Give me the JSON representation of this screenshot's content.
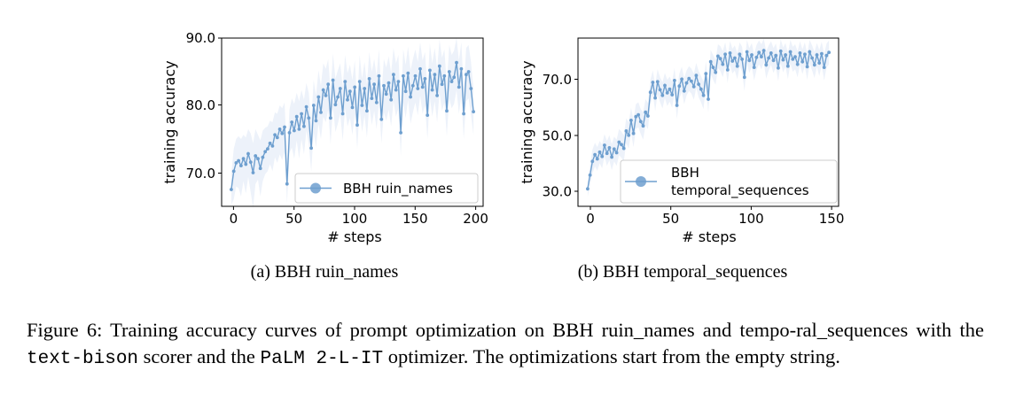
{
  "figures": [
    {
      "subcaption": "(a) BBH ruin_names",
      "xlabel": "# steps",
      "ylabel": "training accuracy",
      "xticks": [
        0,
        50,
        100,
        150,
        200
      ],
      "yticks": [
        "70.0",
        "80.0",
        "90.0"
      ],
      "legend": [
        "BBH ruin_names"
      ]
    },
    {
      "subcaption": "(b) BBH temporal_sequences",
      "xlabel": "# steps",
      "ylabel": "training accuracy",
      "xticks": [
        0,
        50,
        100,
        150
      ],
      "yticks": [
        "30.0",
        "50.0",
        "70.0"
      ],
      "legend": [
        "BBH",
        "temporal_sequences"
      ]
    }
  ],
  "caption": {
    "part1": "Figure 6:  Training accuracy curves of prompt optimization on BBH ruin_names and tempo-ral_sequences with the ",
    "scorer": "text-bison",
    "part2": " scorer and the ",
    "optimizer": "PaLM 2-L-IT",
    "part3": " optimizer. The optimizations start from the empty string."
  },
  "chart_data": [
    {
      "type": "line",
      "title": "",
      "xlabel": "# steps",
      "ylabel": "training accuracy",
      "xlim": [
        -8,
        208
      ],
      "ylim": [
        66,
        90
      ],
      "grid": false,
      "legend_position": "bottom-right",
      "colors": {
        "line": "#6e9fcf",
        "band": "#dfe7f5"
      },
      "series": [
        {
          "name": "BBH ruin_names",
          "x": [
            0,
            2,
            4,
            6,
            8,
            10,
            12,
            14,
            16,
            18,
            20,
            22,
            24,
            26,
            28,
            30,
            32,
            34,
            36,
            38,
            40,
            42,
            44,
            46,
            48,
            50,
            52,
            54,
            56,
            58,
            60,
            62,
            64,
            66,
            68,
            70,
            72,
            74,
            76,
            78,
            80,
            82,
            84,
            86,
            88,
            90,
            92,
            94,
            96,
            98,
            100,
            102,
            104,
            106,
            108,
            110,
            112,
            114,
            116,
            118,
            120,
            122,
            124,
            126,
            128,
            130,
            132,
            134,
            136,
            138,
            140,
            142,
            144,
            146,
            148,
            150,
            152,
            154,
            156,
            158,
            160,
            162,
            164,
            166,
            168,
            170,
            172,
            174,
            176,
            178,
            180,
            182,
            184,
            186,
            188,
            190,
            192,
            194,
            196,
            198,
            200
          ],
          "y": [
            68.4,
            71.0,
            72.2,
            72.5,
            71.8,
            72.8,
            72.0,
            73.5,
            72.3,
            70.8,
            73.2,
            72.8,
            71.4,
            73.0,
            73.8,
            74.2,
            75.0,
            74.6,
            76.2,
            75.8,
            77.0,
            76.4,
            77.3,
            69.2,
            76.5,
            78.0,
            76.8,
            78.8,
            77.0,
            79.2,
            77.4,
            80.2,
            78.6,
            74.3,
            80.4,
            78.2,
            81.6,
            79.4,
            82.6,
            81.8,
            83.4,
            78.6,
            84.0,
            80.5,
            81.6,
            82.8,
            79.2,
            83.8,
            81.2,
            82.4,
            80.1,
            83.0,
            77.6,
            83.8,
            80.4,
            82.8,
            79.6,
            84.2,
            81.4,
            83.4,
            80.8,
            84.6,
            78.4,
            83.2,
            82.0,
            83.6,
            81.2,
            84.8,
            82.6,
            83.8,
            76.5,
            84.6,
            82.4,
            85.0,
            81.6,
            83.2,
            84.6,
            82.8,
            85.6,
            83.0,
            84.2,
            79.0,
            85.4,
            82.6,
            84.8,
            81.8,
            86.0,
            83.4,
            84.6,
            79.6,
            85.2,
            83.8,
            84.4,
            86.5,
            83.0,
            85.6,
            79.2,
            84.8,
            85.2,
            82.8,
            79.5
          ],
          "lower": [
            66.2,
            67.0,
            68.8,
            68.6,
            67.4,
            69.6,
            67.8,
            70.2,
            68.0,
            65.8,
            69.2,
            69.8,
            67.4,
            69.6,
            70.6,
            71.0,
            72.0,
            71.0,
            73.0,
            72.2,
            73.4,
            72.6,
            73.8,
            66.4,
            73.6,
            74.4,
            72.8,
            75.4,
            72.8,
            75.6,
            73.4,
            76.8,
            74.8,
            71.0,
            76.6,
            74.4,
            77.8,
            75.6,
            78.8,
            78.0,
            79.8,
            74.8,
            80.2,
            76.6,
            77.8,
            79.2,
            75.4,
            80.0,
            77.4,
            78.6,
            76.2,
            79.2,
            74.2,
            80.0,
            76.6,
            79.0,
            75.8,
            80.4,
            77.6,
            79.6,
            77.0,
            80.8,
            75.0,
            79.4,
            78.2,
            79.8,
            77.4,
            81.0,
            78.8,
            80.0,
            73.2,
            80.8,
            78.6,
            81.2,
            77.8,
            79.4,
            80.8,
            79.0,
            81.8,
            79.2,
            80.4,
            75.6,
            81.6,
            78.8,
            81.0,
            78.0,
            82.2,
            79.6,
            80.8,
            76.0,
            81.4,
            80.0,
            80.6,
            82.6,
            79.2,
            81.8,
            75.6,
            81.0,
            81.4,
            79.0,
            76.2
          ],
          "upper": [
            70.6,
            74.2,
            75.6,
            76.0,
            75.6,
            76.2,
            75.8,
            77.0,
            76.4,
            75.0,
            77.0,
            76.2,
            75.4,
            76.8,
            77.2,
            77.4,
            78.2,
            78.0,
            79.4,
            79.2,
            80.4,
            80.0,
            80.8,
            72.6,
            79.8,
            81.4,
            80.6,
            82.2,
            81.0,
            82.6,
            81.2,
            83.6,
            82.2,
            78.0,
            84.0,
            81.8,
            85.4,
            83.2,
            86.4,
            85.6,
            87.0,
            82.4,
            87.8,
            84.2,
            85.4,
            86.4,
            83.0,
            87.6,
            85.0,
            86.2,
            84.0,
            86.8,
            81.0,
            87.6,
            84.2,
            86.6,
            83.4,
            88.0,
            85.2,
            87.0,
            84.6,
            88.4,
            82.0,
            87.0,
            85.8,
            87.4,
            85.0,
            88.6,
            86.4,
            87.6,
            80.0,
            88.4,
            86.2,
            88.8,
            85.4,
            87.0,
            88.4,
            86.6,
            89.4,
            86.8,
            88.0,
            82.8,
            89.2,
            86.4,
            88.6,
            85.6,
            89.8,
            87.2,
            88.4,
            83.4,
            89.0,
            87.6,
            88.2,
            90.0,
            86.8,
            89.4,
            82.8,
            88.6,
            89.0,
            86.6,
            82.8
          ]
        }
      ]
    },
    {
      "type": "line",
      "title": "",
      "xlabel": "# steps",
      "ylabel": "training accuracy",
      "xlim": [
        -6,
        156
      ],
      "ylim": [
        26,
        80
      ],
      "grid": false,
      "legend_position": "bottom-right",
      "colors": {
        "line": "#6e9fcf",
        "band": "#dfe7f5"
      },
      "series": [
        {
          "name": "BBH temporal_sequences",
          "x": [
            0,
            1.5,
            3,
            4.5,
            6,
            7.5,
            9,
            10.5,
            12,
            13.5,
            15,
            16.5,
            18,
            19.5,
            21,
            22.5,
            24,
            25.5,
            27,
            28.5,
            30,
            31.5,
            33,
            34.5,
            36,
            37.5,
            39,
            40.5,
            42,
            43.5,
            45,
            46.5,
            48,
            49.5,
            51,
            52.5,
            54,
            55.5,
            57,
            58.5,
            60,
            61.5,
            63,
            64.5,
            66,
            67.5,
            69,
            70.5,
            72,
            73.5,
            75,
            76.5,
            78,
            79.5,
            81,
            82.5,
            84,
            85.5,
            87,
            88.5,
            90,
            91.5,
            93,
            94.5,
            96,
            97.5,
            99,
            100.5,
            102,
            103.5,
            105,
            106.5,
            108,
            109.5,
            111,
            112.5,
            114,
            115.5,
            117,
            118.5,
            120,
            121.5,
            123,
            124.5,
            126,
            127.5,
            129,
            130.5,
            132,
            133.5,
            135,
            136.5,
            138,
            139.5,
            141,
            142.5,
            144,
            145.5,
            147,
            148.5,
            150
          ],
          "y": [
            31.6,
            36.0,
            40.4,
            42.6,
            41.2,
            43.4,
            42.0,
            45.6,
            43.0,
            44.8,
            41.8,
            44.4,
            43.2,
            46.6,
            45.8,
            44.6,
            50.2,
            48.8,
            53.6,
            49.4,
            54.8,
            55.4,
            53.2,
            51.8,
            56.2,
            55.0,
            62.6,
            65.8,
            60.8,
            66.0,
            63.4,
            61.6,
            64.8,
            62.4,
            63.6,
            61.8,
            66.4,
            58.4,
            64.6,
            66.8,
            63.0,
            65.6,
            67.0,
            66.2,
            64.4,
            68.0,
            65.2,
            63.6,
            61.6,
            68.6,
            60.4,
            72.4,
            70.6,
            69.0,
            74.2,
            73.4,
            71.6,
            74.8,
            69.8,
            75.2,
            72.6,
            73.6,
            71.0,
            74.8,
            73.2,
            67.4,
            75.6,
            72.8,
            74.6,
            70.6,
            73.8,
            75.4,
            74.0,
            76.0,
            71.4,
            73.6,
            75.2,
            72.8,
            74.4,
            70.4,
            75.8,
            73.0,
            74.6,
            71.0,
            75.6,
            73.2,
            74.0,
            71.6,
            75.2,
            72.4,
            74.8,
            70.8,
            75.6,
            73.6,
            71.4,
            74.6,
            72.0,
            75.0,
            70.6,
            74.4,
            75.4
          ],
          "lower": [
            29.0,
            32.8,
            36.6,
            38.8,
            37.4,
            39.8,
            38.2,
            42.0,
            39.0,
            40.8,
            37.6,
            40.4,
            39.0,
            42.4,
            41.6,
            40.4,
            46.2,
            44.6,
            49.6,
            45.0,
            50.8,
            51.4,
            49.2,
            47.4,
            52.0,
            50.8,
            58.6,
            62.0,
            56.6,
            62.0,
            59.4,
            57.4,
            60.8,
            58.2,
            59.6,
            57.6,
            62.4,
            54.0,
            60.6,
            62.8,
            58.8,
            61.6,
            63.0,
            62.2,
            60.2,
            64.0,
            61.0,
            59.4,
            57.2,
            64.6,
            56.0,
            68.6,
            66.6,
            65.0,
            70.4,
            69.4,
            67.4,
            71.0,
            65.6,
            71.4,
            68.6,
            69.6,
            66.8,
            71.0,
            69.2,
            63.0,
            71.8,
            68.8,
            70.8,
            66.4,
            69.8,
            71.6,
            70.0,
            72.2,
            67.0,
            69.6,
            71.4,
            68.8,
            70.6,
            66.2,
            72.0,
            69.0,
            70.8,
            66.8,
            71.8,
            69.2,
            70.0,
            67.4,
            71.4,
            68.4,
            71.0,
            66.6,
            71.8,
            69.6,
            67.2,
            70.8,
            67.8,
            71.2,
            66.4,
            70.6,
            71.6
          ],
          "upper": [
            34.2,
            39.2,
            44.2,
            46.4,
            45.0,
            47.0,
            45.8,
            49.2,
            47.0,
            48.8,
            46.0,
            48.4,
            47.4,
            50.8,
            50.0,
            48.8,
            54.2,
            53.0,
            57.6,
            53.8,
            58.8,
            59.4,
            57.2,
            56.2,
            60.4,
            59.2,
            66.6,
            69.6,
            65.0,
            70.0,
            67.4,
            65.8,
            68.8,
            66.6,
            67.6,
            66.0,
            70.4,
            62.8,
            68.6,
            70.8,
            67.2,
            69.6,
            71.0,
            70.2,
            68.6,
            72.0,
            69.4,
            67.8,
            66.0,
            72.6,
            64.8,
            76.2,
            74.6,
            73.0,
            78.0,
            77.4,
            75.8,
            78.6,
            74.0,
            79.0,
            76.6,
            77.6,
            75.2,
            78.6,
            77.2,
            71.8,
            79.4,
            76.8,
            78.4,
            74.8,
            77.8,
            79.2,
            78.0,
            79.8,
            75.8,
            77.6,
            79.0,
            76.8,
            78.2,
            74.6,
            79.6,
            77.0,
            78.4,
            75.2,
            79.4,
            77.2,
            78.0,
            75.8,
            79.0,
            76.4,
            78.6,
            75.0,
            79.4,
            77.6,
            75.6,
            78.4,
            76.2,
            78.8,
            74.8,
            78.2,
            79.2
          ]
        }
      ]
    }
  ]
}
